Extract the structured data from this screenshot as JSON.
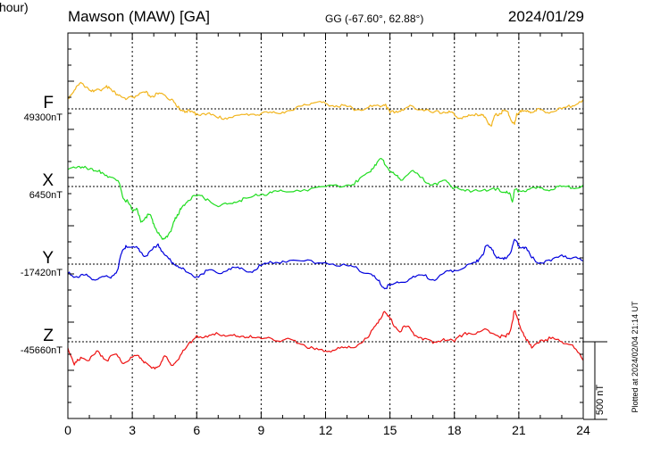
{
  "header": {
    "station": "Mawson (MAW)  [GA]",
    "coords": "GG (-67.60°,  62.88°)",
    "date": "2024/01/29"
  },
  "scale_bar": {
    "label": "500 nT",
    "value": 500
  },
  "plotted_stamp": "Plotted at 2024/02/04 21:14 UT",
  "chart_data": {
    "type": "line",
    "xlabel": "U T (hour)",
    "xlim": [
      0,
      24
    ],
    "xticks": [
      0,
      3,
      6,
      9,
      12,
      15,
      18,
      21,
      24
    ],
    "grid": "vertical dotted every 3 h; dotted baseline per component",
    "series": [
      {
        "name": "F",
        "baseline_label": "49300nT",
        "baseline": 49300,
        "color": "#f2b51e",
        "x": [
          0,
          0.3,
          0.6,
          0.9,
          1.2,
          1.5,
          1.8,
          2.1,
          2.4,
          2.7,
          3.0,
          3.3,
          3.6,
          3.9,
          4.2,
          4.5,
          4.8,
          5.1,
          5.4,
          5.7,
          6.0,
          6.5,
          7.0,
          7.5,
          8.0,
          8.5,
          9.0,
          9.5,
          10.0,
          10.5,
          11.0,
          11.5,
          12.0,
          12.5,
          13.0,
          13.5,
          14.0,
          14.5,
          14.8,
          15.0,
          15.3,
          15.6,
          16.0,
          16.5,
          17.0,
          17.5,
          17.8,
          18.0,
          18.3,
          18.6,
          19.0,
          19.3,
          19.5,
          19.7,
          19.9,
          20.1,
          20.3,
          20.5,
          20.7,
          20.8,
          20.9,
          21.1,
          21.4,
          21.7,
          22.0,
          22.5,
          23.0,
          23.5,
          24.0
        ],
        "y": [
          70,
          120,
          170,
          140,
          110,
          120,
          150,
          110,
          90,
          60,
          75,
          90,
          105,
          80,
          95,
          90,
          60,
          10,
          -10,
          -20,
          -30,
          -30,
          -60,
          -55,
          -40,
          -35,
          -30,
          -25,
          -20,
          -10,
          30,
          40,
          35,
          20,
          15,
          -5,
          10,
          20,
          30,
          -25,
          -15,
          -10,
          20,
          -5,
          -25,
          -20,
          -20,
          -40,
          -60,
          -50,
          -30,
          -40,
          -70,
          -110,
          -40,
          -30,
          -10,
          -20,
          -90,
          -100,
          -30,
          -20,
          -10,
          -20,
          -5,
          -20,
          0,
          20,
          60
        ]
      },
      {
        "name": "X",
        "baseline_label": "6450nT",
        "baseline": 6450,
        "color": "#20dd20",
        "x": [
          0,
          0.4,
          0.8,
          1.2,
          1.6,
          2.0,
          2.4,
          2.6,
          2.8,
          3.0,
          3.2,
          3.4,
          3.6,
          3.8,
          4.0,
          4.2,
          4.4,
          4.6,
          4.8,
          5.0,
          5.2,
          5.4,
          5.6,
          6.0,
          6.5,
          7.0,
          7.5,
          8.0,
          8.5,
          9.0,
          9.5,
          10.0,
          11.0,
          12.0,
          13.0,
          13.5,
          14.0,
          14.3,
          14.6,
          14.9,
          15.2,
          15.5,
          16.0,
          16.4,
          16.8,
          17.2,
          17.6,
          18.0,
          18.5,
          19.0,
          19.5,
          20.0,
          20.4,
          20.6,
          20.7,
          20.8,
          21.0,
          21.4,
          22.0,
          22.5,
          23.0,
          23.5,
          24.0
        ],
        "y": [
          110,
          120,
          130,
          100,
          90,
          60,
          20,
          -80,
          -100,
          -150,
          -140,
          -230,
          -200,
          -180,
          -240,
          -300,
          -340,
          -320,
          -290,
          -200,
          -160,
          -120,
          -90,
          -60,
          -80,
          -130,
          -110,
          -90,
          -70,
          -50,
          -40,
          -30,
          -20,
          0,
          10,
          30,
          90,
          140,
          180,
          120,
          80,
          40,
          100,
          60,
          20,
          10,
          40,
          -10,
          -30,
          -20,
          -30,
          -10,
          -40,
          -50,
          -100,
          -20,
          -30,
          -20,
          -10,
          -20,
          0,
          -10,
          10
        ]
      },
      {
        "name": "Y",
        "baseline_label": "-17420nT",
        "baseline": -17420,
        "color": "#0000dd",
        "x": [
          0,
          0.4,
          0.8,
          1.2,
          1.6,
          2.0,
          2.3,
          2.5,
          2.7,
          3.0,
          3.3,
          3.6,
          3.9,
          4.2,
          4.5,
          4.8,
          5.1,
          5.5,
          6.0,
          6.5,
          7.0,
          7.5,
          8.0,
          8.5,
          9.0,
          9.5,
          10.0,
          11.0,
          12.0,
          13.0,
          13.5,
          14.0,
          14.4,
          14.7,
          15.0,
          15.4,
          16.0,
          16.5,
          17.0,
          17.5,
          18.0,
          18.5,
          19.0,
          19.3,
          19.5,
          19.8,
          20.0,
          20.3,
          20.6,
          20.8,
          21.0,
          21.3,
          21.6,
          22.0,
          22.5,
          23.0,
          23.5,
          24.0
        ],
        "y": [
          -60,
          -80,
          -70,
          -100,
          -80,
          -90,
          -40,
          70,
          120,
          110,
          100,
          50,
          90,
          130,
          60,
          20,
          -10,
          -50,
          -80,
          -40,
          -60,
          -30,
          -30,
          -50,
          -10,
          10,
          20,
          20,
          10,
          -10,
          -30,
          -60,
          -100,
          -150,
          -140,
          -120,
          -90,
          -70,
          -100,
          -60,
          -40,
          -20,
          10,
          60,
          120,
          90,
          40,
          30,
          70,
          160,
          120,
          110,
          40,
          10,
          20,
          60,
          40,
          20
        ]
      },
      {
        "name": "Z",
        "baseline_label": "-45660nT",
        "baseline": -45660,
        "color": "#ee1111",
        "x": [
          0,
          0.3,
          0.6,
          1.0,
          1.4,
          1.8,
          2.2,
          2.6,
          3.0,
          3.3,
          3.6,
          3.9,
          4.2,
          4.5,
          4.8,
          5.1,
          5.5,
          6.0,
          6.5,
          7.0,
          7.5,
          8.0,
          8.5,
          9.0,
          9.5,
          10.0,
          10.5,
          11.0,
          11.5,
          12.0,
          12.5,
          13.0,
          13.5,
          14.0,
          14.4,
          14.7,
          15.0,
          15.4,
          15.8,
          16.2,
          16.6,
          17.0,
          17.5,
          18.0,
          18.5,
          19.0,
          19.5,
          20.0,
          20.4,
          20.6,
          20.8,
          21.0,
          21.3,
          21.6,
          22.0,
          22.5,
          23.0,
          23.5,
          24.0
        ],
        "y": [
          -40,
          -150,
          -100,
          -120,
          -60,
          -120,
          -80,
          -140,
          -100,
          -90,
          -130,
          -170,
          -160,
          -90,
          -150,
          -120,
          -40,
          40,
          30,
          50,
          40,
          30,
          40,
          20,
          20,
          10,
          10,
          -20,
          -50,
          -60,
          -50,
          -40,
          -20,
          30,
          120,
          190,
          150,
          70,
          100,
          40,
          20,
          -10,
          20,
          0,
          60,
          50,
          80,
          40,
          30,
          70,
          200,
          120,
          30,
          -40,
          10,
          20,
          0,
          -20,
          -120
        ]
      }
    ]
  }
}
